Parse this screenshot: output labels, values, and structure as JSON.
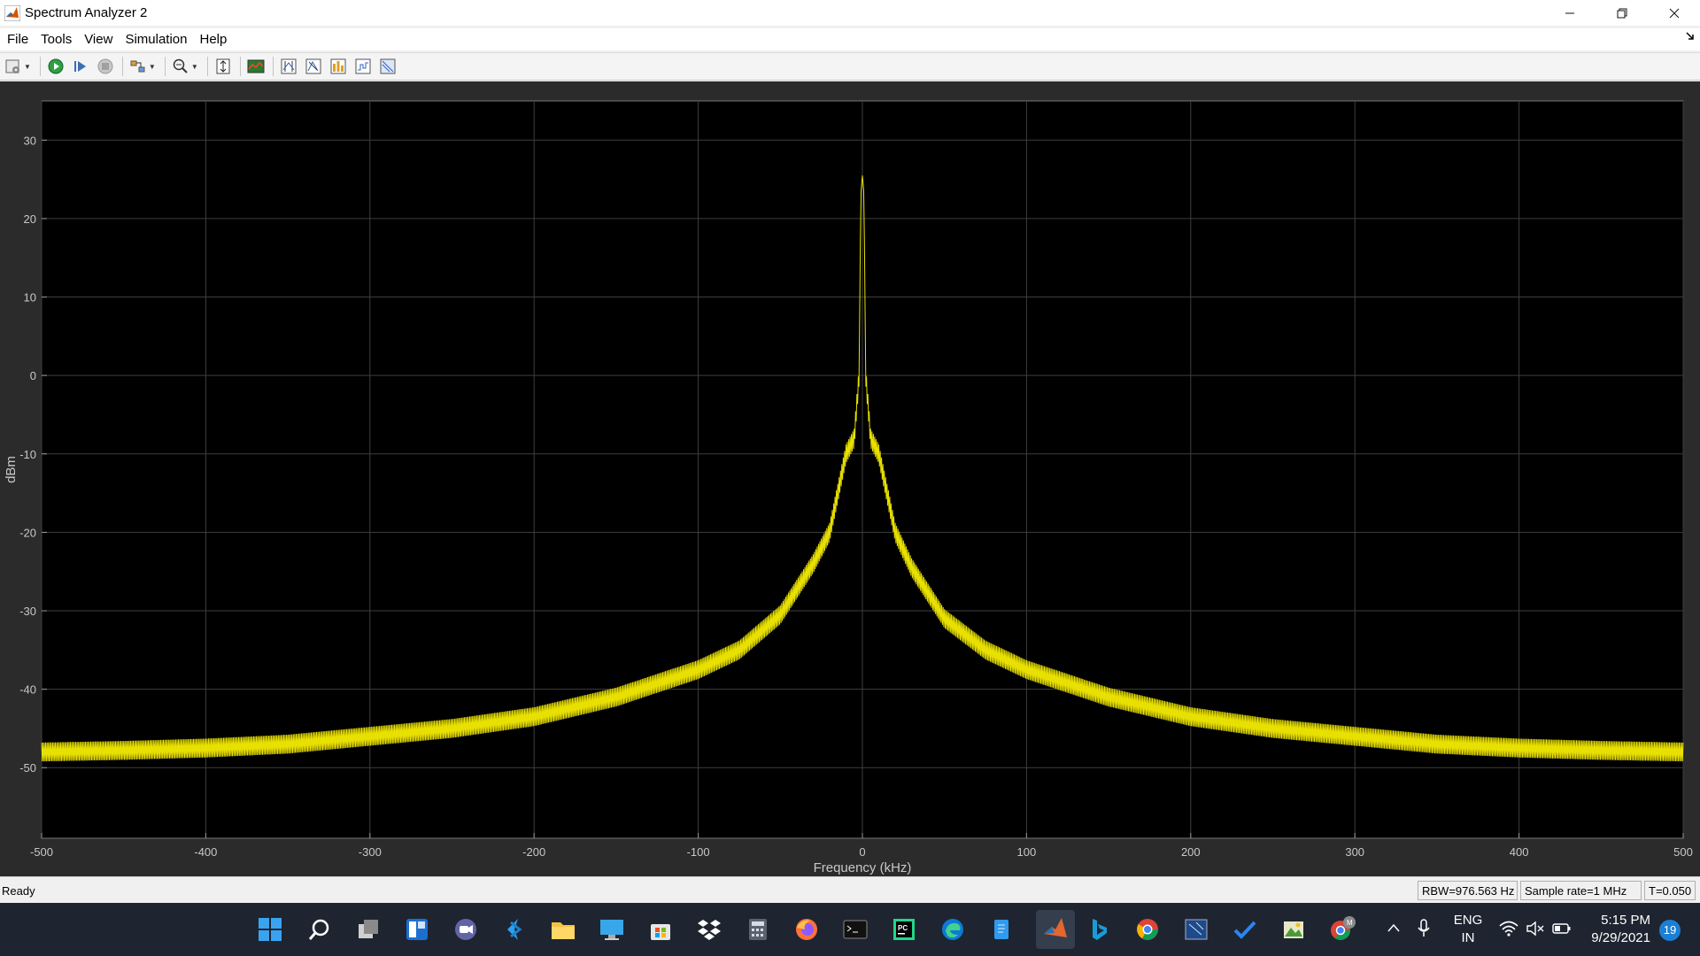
{
  "window": {
    "title": "Spectrum Analyzer 2"
  },
  "menu": [
    "File",
    "Tools",
    "View",
    "Simulation",
    "Help"
  ],
  "toolbar": {
    "buttons": [
      "settings-icon",
      "run-icon",
      "step-icon",
      "stop-icon",
      "highlight-simulink-icon",
      "zoom-icon",
      "scale-axes-icon",
      "spectrum-settings-icon",
      "cursor-measurements-icon",
      "peak-finder-icon",
      "distortion-measurements-icon",
      "ccdf-icon",
      "channel-measurements-icon"
    ]
  },
  "chart_data": {
    "type": "line",
    "xlabel": "Frequency (kHz)",
    "ylabel": "dBm",
    "xlim": [
      -500,
      500
    ],
    "ylim": [
      -59,
      35
    ],
    "xticks": [
      -500,
      -400,
      -300,
      -200,
      -100,
      0,
      100,
      200,
      300,
      400,
      500
    ],
    "yticks": [
      30,
      20,
      10,
      0,
      -10,
      -20,
      -30,
      -40,
      -50
    ],
    "grid": true,
    "series": [
      {
        "color": "#e8e000",
        "x": [
          -500,
          -450,
          -400,
          -350,
          -300,
          -250,
          -200,
          -150,
          -100,
          -75,
          -50,
          -30,
          -20,
          -10,
          -5,
          -2,
          -1,
          0,
          1,
          2,
          5,
          10,
          20,
          30,
          50,
          75,
          100,
          150,
          200,
          250,
          300,
          350,
          400,
          450,
          500
        ],
        "y": [
          -48,
          -47.8,
          -47.5,
          -47,
          -46,
          -45,
          -43.5,
          -41,
          -37.5,
          -35,
          -30.5,
          -24,
          -20,
          -10,
          -8,
          0,
          23,
          25.5,
          23,
          0,
          -8,
          -10,
          -20,
          -24.5,
          -31,
          -35,
          -37.5,
          -41,
          -43.5,
          -45,
          -46,
          -47,
          -47.5,
          -47.8,
          -48
        ]
      }
    ],
    "ripple_db": 1.2
  },
  "status": {
    "ready": "Ready",
    "rbw": "RBW=976.563 Hz",
    "sample_rate": "Sample rate=1 MHz",
    "time": "T=0.050"
  },
  "taskbar": {
    "apps": [
      "windows-start-icon",
      "search-icon",
      "task-view-icon",
      "widgets-icon",
      "teams-chat-icon",
      "vscode-icon",
      "file-explorer-icon",
      "remote-desktop-icon",
      "store-icon",
      "dropbox-icon",
      "calculator-icon",
      "firefox-icon",
      "terminal-icon",
      "pycharm-icon",
      "edge-icon",
      "notepad-icon",
      "matlab-icon",
      "bing-icon",
      "chrome-icon",
      "putty-icon",
      "todo-icon",
      "image-editor-icon",
      "chrome-profile-icon"
    ],
    "language_line1": "ENG",
    "language_line2": "IN",
    "clock_time": "5:15 PM",
    "clock_date": "9/29/2021",
    "notifications": "19"
  }
}
